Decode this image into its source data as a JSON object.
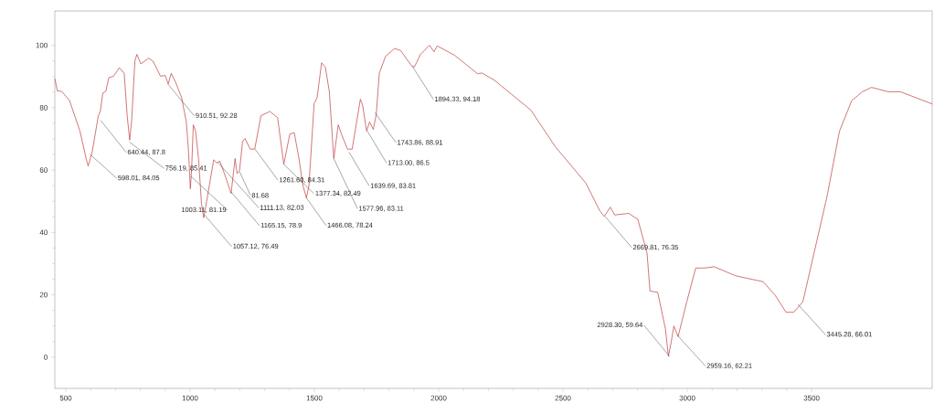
{
  "chart_data": {
    "type": "line",
    "color": "#c0393b",
    "xlim": [
      456,
      3985
    ],
    "ylim": [
      -10,
      111
    ],
    "xticks": [
      500,
      1000,
      1500,
      2000,
      2500,
      3000,
      3500
    ],
    "yticks": [
      0,
      20,
      40,
      60,
      80,
      100
    ],
    "x": [
      456,
      466,
      484,
      515,
      557,
      582,
      590,
      606,
      631,
      639,
      649,
      661,
      673,
      692,
      716,
      735,
      747,
      757,
      765,
      778,
      786,
      802,
      833,
      851,
      881,
      900,
      912,
      924,
      942,
      966,
      985,
      994,
      1001,
      1006,
      1013,
      1022,
      1034,
      1046,
      1055,
      1071,
      1095,
      1107,
      1120,
      1138,
      1165,
      1181,
      1189,
      1199,
      1211,
      1221,
      1242,
      1260,
      1285,
      1321,
      1352,
      1377,
      1401,
      1419,
      1438,
      1454,
      1468,
      1478,
      1499,
      1511,
      1529,
      1544,
      1560,
      1578,
      1596,
      1609,
      1633,
      1652,
      1670,
      1685,
      1694,
      1710,
      1722,
      1737,
      1749,
      1761,
      1786,
      1823,
      1847,
      1890,
      1902,
      1927,
      1963,
      1981,
      1994,
      2064,
      2156,
      2174,
      2224,
      2371,
      2469,
      2592,
      2647,
      2666,
      2690,
      2708,
      2764,
      2801,
      2838,
      2850,
      2881,
      2912,
      2924,
      2936,
      2946,
      2963,
      2998,
      3034,
      3071,
      3108,
      3194,
      3305,
      3354,
      3397,
      3428,
      3465,
      3563,
      3612,
      3661,
      3704,
      3741,
      3808,
      3857,
      3985
    ],
    "values": [
      89.3,
      85.4,
      85.2,
      82.3,
      72.5,
      63.7,
      61.3,
      65.7,
      77.4,
      78.8,
      84.7,
      85.2,
      89.6,
      90.1,
      92.8,
      91.0,
      77.4,
      69.6,
      75.9,
      94.9,
      97.1,
      94.0,
      95.9,
      94.9,
      90.1,
      90.3,
      87.6,
      91.0,
      88.1,
      83.2,
      75.4,
      65.7,
      54.0,
      59.8,
      74.5,
      72.5,
      63.7,
      49.1,
      44.7,
      52.0,
      63.3,
      62.3,
      62.8,
      58.9,
      52.5,
      63.7,
      58.9,
      59.8,
      69.1,
      70.1,
      66.7,
      66.7,
      77.4,
      78.8,
      76.8,
      61.8,
      71.5,
      72.0,
      63.7,
      55.0,
      51.1,
      55.0,
      81.3,
      83.2,
      94.4,
      93.0,
      85.2,
      63.7,
      74.5,
      71.5,
      66.7,
      66.7,
      75.4,
      82.7,
      80.8,
      72.5,
      75.4,
      73.0,
      77.9,
      91.0,
      96.4,
      99.0,
      98.3,
      93.5,
      93.0,
      97.1,
      100.0,
      97.9,
      99.8,
      96.8,
      90.9,
      91.1,
      88.8,
      79.2,
      67.5,
      55.8,
      47.1,
      45.1,
      48.1,
      45.6,
      46.1,
      44.2,
      33.4,
      21.2,
      20.8,
      9.1,
      0.3,
      5.2,
      10.0,
      6.6,
      17.8,
      28.6,
      28.6,
      29.0,
      26.1,
      24.2,
      19.8,
      14.4,
      14.4,
      17.8,
      51.9,
      72.4,
      82.2,
      85.1,
      86.5,
      85.1,
      85.1,
      81.2
    ],
    "annotations": [
      {
        "text": "598.01, 84.05",
        "x": 598.01,
        "y": 65.0
      },
      {
        "text": "640.44, 87.8",
        "x": 640.44,
        "y": 75.9
      },
      {
        "text": "756.19, 85.41",
        "x": 756.19,
        "y": 69.0
      },
      {
        "text": "910.51, 92.28",
        "x": 910.51,
        "y": 87.6
      },
      {
        "text": "1003.11, 81.19",
        "x": 1003.11,
        "y": 58.0
      },
      {
        "text": "1057.12, 76.49",
        "x": 1057.12,
        "y": 45.7
      },
      {
        "text": "1111.13, 82.03",
        "x": 1111.13,
        "y": 62.5
      },
      {
        "text": "1165.15, 78.9",
        "x": 1165.15,
        "y": 53.0
      },
      {
        "text": "81.68",
        "x": 1199,
        "y": 59.5
      },
      {
        "text": "1261.60, 84.31",
        "x": 1261.6,
        "y": 66.7
      },
      {
        "text": "1377.34, 82.49",
        "x": 1377.34,
        "y": 61.8
      },
      {
        "text": "1466.08, 78.24",
        "x": 1466.08,
        "y": 51.3
      },
      {
        "text": "1577.96, 83.11",
        "x": 1577.96,
        "y": 63.7
      },
      {
        "text": "1639.69, 83.81",
        "x": 1639.69,
        "y": 65.7
      },
      {
        "text": "1713.00, 86.5",
        "x": 1713.0,
        "y": 72.5
      },
      {
        "text": "1743.86, 88.91",
        "x": 1743.86,
        "y": 78.4
      },
      {
        "text": "1894.33, 94.18",
        "x": 1894.33,
        "y": 93.2
      },
      {
        "text": "2669.81, 76.35",
        "x": 2669.81,
        "y": 45.1
      },
      {
        "text": "2928.30, 59.64",
        "x": 2928.3,
        "y": 0.3
      },
      {
        "text": "2959.16, 62.21",
        "x": 2959.16,
        "y": 7.1
      },
      {
        "text": "3445.28, 66.01",
        "x": 3445.28,
        "y": 16.9
      }
    ]
  }
}
